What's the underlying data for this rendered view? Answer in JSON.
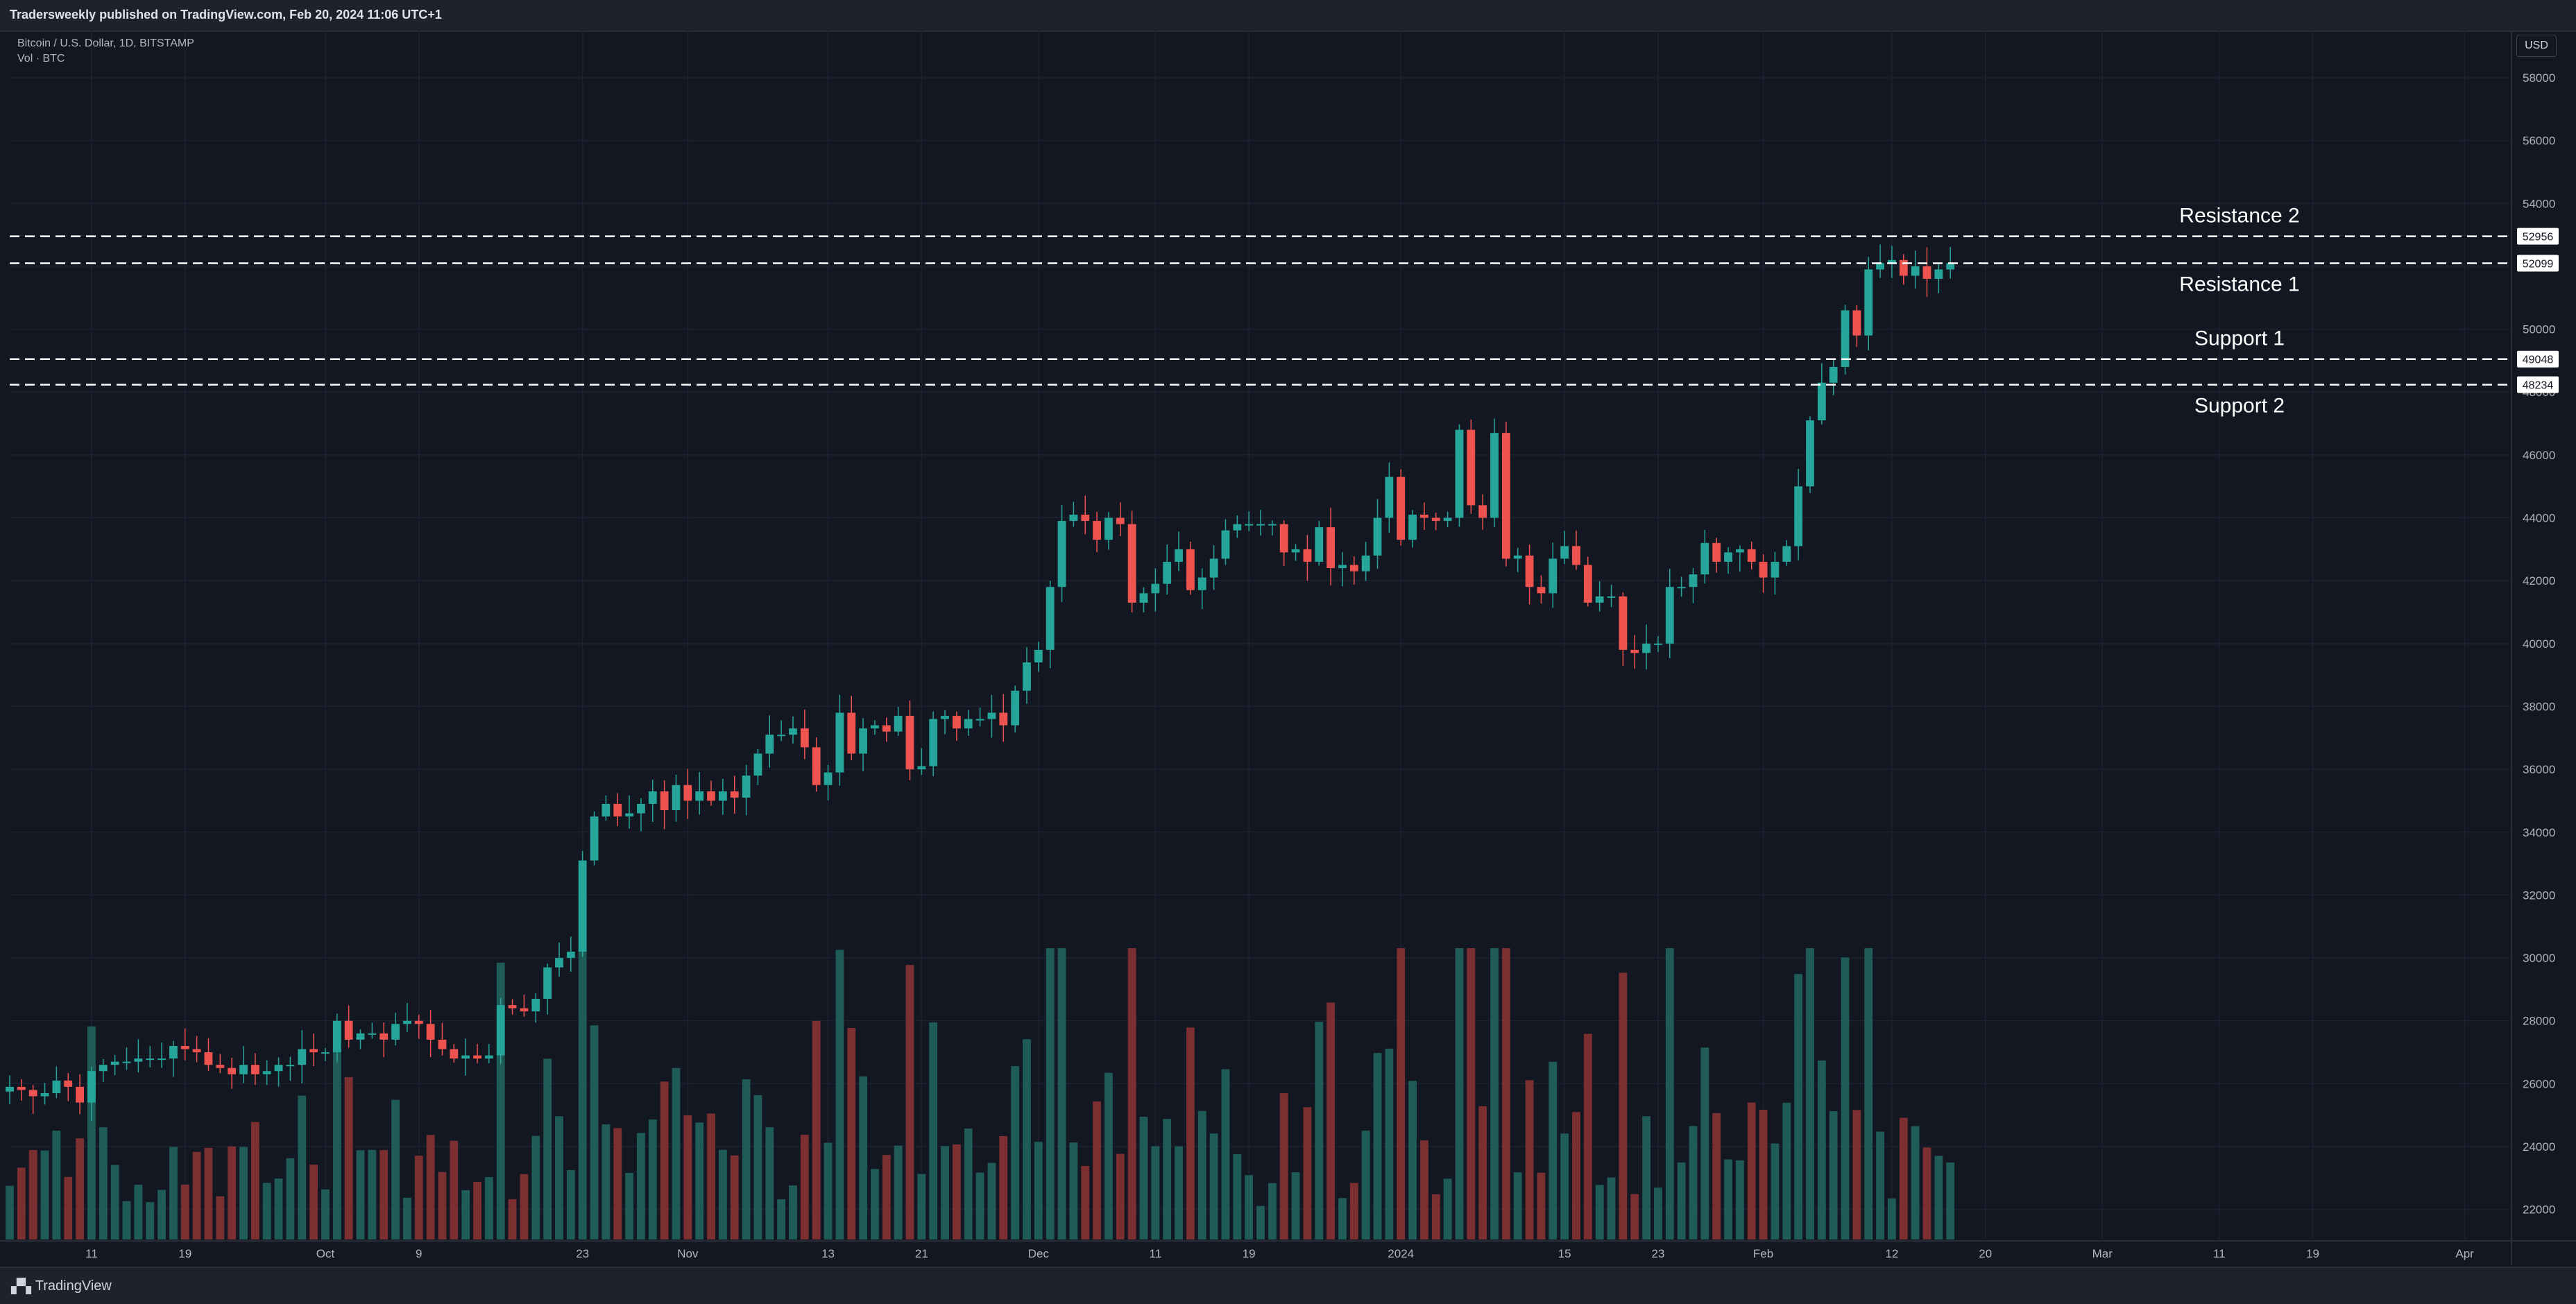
{
  "header": {
    "published": "Tradersweekly published on TradingView.com, Feb 20, 2024 11:06 UTC+1"
  },
  "legend": {
    "symbol": "Bitcoin / U.S. Dollar, 1D, BITSTAMP",
    "volume": "Vol · BTC"
  },
  "currency": "USD",
  "footer": {
    "brand": "TradingView"
  },
  "colors": {
    "up": "#26a69a",
    "down": "#ef5350",
    "vol_up": "#1f5c58",
    "vol_down": "#7c2f30",
    "grid": "#1e2230",
    "text": "#b2b5be",
    "line": "#ffffff"
  },
  "chart_data": {
    "type": "candlestick",
    "title": "Bitcoin / U.S. Dollar, 1D, BITSTAMP",
    "ylim": [
      21000,
      59500
    ],
    "y_ticks": [
      22000,
      24000,
      26000,
      28000,
      30000,
      32000,
      34000,
      36000,
      38000,
      40000,
      42000,
      44000,
      46000,
      48000,
      50000,
      52000,
      54000,
      56000,
      58000
    ],
    "x_ticks": [
      {
        "label": "11",
        "i": 7
      },
      {
        "label": "19",
        "i": 15
      },
      {
        "label": "Oct",
        "i": 27
      },
      {
        "label": "9",
        "i": 35
      },
      {
        "label": "23",
        "i": 49
      },
      {
        "label": "Nov",
        "i": 58
      },
      {
        "label": "13",
        "i": 70
      },
      {
        "label": "21",
        "i": 78
      },
      {
        "label": "Dec",
        "i": 88
      },
      {
        "label": "11",
        "i": 98
      },
      {
        "label": "19",
        "i": 106
      },
      {
        "label": "2024",
        "i": 119
      },
      {
        "label": "15",
        "i": 133
      },
      {
        "label": "23",
        "i": 141
      },
      {
        "label": "Feb",
        "i": 150
      },
      {
        "label": "12",
        "i": 161
      },
      {
        "label": "20",
        "i": 169
      },
      {
        "label": "Mar",
        "i": 179
      },
      {
        "label": "11",
        "i": 189
      },
      {
        "label": "19",
        "i": 197
      },
      {
        "label": "Apr",
        "i": 210
      }
    ],
    "x_range": [
      0,
      214
    ],
    "levels": [
      {
        "name": "Resistance 2",
        "value": 52956,
        "label": "52956",
        "text_pos": "above"
      },
      {
        "name": "Resistance 1",
        "value": 52099,
        "label": "52099",
        "text_pos": "below"
      },
      {
        "name": "Support 1",
        "value": 49048,
        "label": "49048",
        "text_pos": "above"
      },
      {
        "name": "Support 2",
        "value": 48234,
        "label": "48234",
        "text_pos": "below"
      }
    ],
    "closes": [
      25900,
      25800,
      25600,
      25700,
      26100,
      25900,
      25400,
      26400,
      26600,
      26700,
      26700,
      26800,
      26800,
      26800,
      27200,
      27100,
      27000,
      26600,
      26500,
      26300,
      26600,
      26300,
      26400,
      26600,
      26600,
      27100,
      27000,
      27000,
      28000,
      27400,
      27600,
      27600,
      27400,
      27900,
      28000,
      27900,
      27400,
      27100,
      26800,
      26900,
      26800,
      26900,
      28500,
      28400,
      28300,
      28700,
      29700,
      30000,
      30200,
      33100,
      34500,
      34900,
      34500,
      34600,
      34900,
      35300,
      34700,
      35500,
      35000,
      35300,
      35000,
      35300,
      35100,
      35800,
      36500,
      37100,
      37100,
      37300,
      36700,
      35500,
      35900,
      37800,
      36500,
      37300,
      37400,
      37200,
      37700,
      36000,
      36100,
      37600,
      37700,
      37300,
      37600,
      37600,
      37800,
      37400,
      38500,
      39400,
      39800,
      41800,
      43900,
      44100,
      43900,
      43300,
      44000,
      43800,
      41300,
      41600,
      41900,
      42600,
      43000,
      41700,
      42100,
      42700,
      43600,
      43800,
      43800,
      43800,
      43800,
      42900,
      43000,
      42600,
      43700,
      42400,
      42500,
      42300,
      42800,
      44000,
      45300,
      43300,
      44100,
      44000,
      43900,
      44000,
      46800,
      44400,
      44000,
      46700,
      42700,
      42800,
      41800,
      41600,
      42700,
      43100,
      42500,
      41300,
      41500,
      41500,
      39800,
      39700,
      40000,
      40000,
      41800,
      41800,
      42200,
      43200,
      42600,
      42900,
      43000,
      42600,
      42100,
      42600,
      43100,
      45000,
      47100,
      48300,
      48800,
      50600,
      49800,
      51900,
      52100,
      52200,
      51700,
      52000,
      51600,
      51900,
      52100
    ]
  }
}
